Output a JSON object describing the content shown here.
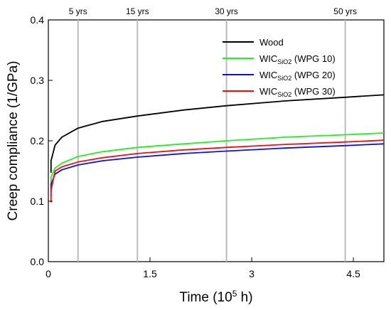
{
  "chart_data": {
    "type": "line",
    "xlabel": "Time (10",
    "xlabel_sup": "5",
    "xlabel_tail": " h)",
    "ylabel": "Creep compliance (1/GPa)",
    "xlim": [
      0,
      4.95
    ],
    "ylim": [
      0,
      0.4
    ],
    "x_ticks": [
      0,
      1.5,
      3,
      4.5
    ],
    "x_tick_labels": [
      "0",
      "1.5",
      "3",
      "4.5"
    ],
    "y_ticks": [
      0.0,
      0.1,
      0.2,
      0.3,
      0.4
    ],
    "y_tick_labels": [
      "0.0",
      "0.1",
      "0.2",
      "0.3",
      "0.4"
    ],
    "grid": false,
    "legend_position": "top-right",
    "annotations": [
      {
        "label": "5 yrs",
        "x": 0.438
      },
      {
        "label": "15 yrs",
        "x": 1.314
      },
      {
        "label": "30 yrs",
        "x": 2.628
      },
      {
        "label": "50 yrs",
        "x": 4.38
      }
    ],
    "series": [
      {
        "name": "Wood",
        "color": "#000000",
        "x": [
          0.04,
          0.1,
          0.2,
          0.438,
          0.8,
          1.314,
          2.0,
          2.628,
          3.5,
          4.38,
          4.95
        ],
        "values": [
          0.167,
          0.193,
          0.206,
          0.221,
          0.232,
          0.241,
          0.251,
          0.258,
          0.266,
          0.272,
          0.276
        ]
      },
      {
        "name_prefix": "WIC",
        "name_sub": "SiO2",
        "name_suffix": " (WPG 10)",
        "color": "#22ee22",
        "x": [
          0.04,
          0.1,
          0.2,
          0.438,
          0.8,
          1.314,
          2.0,
          2.628,
          3.5,
          4.38,
          4.95
        ],
        "values": [
          0.14,
          0.155,
          0.163,
          0.174,
          0.182,
          0.189,
          0.195,
          0.2,
          0.206,
          0.21,
          0.213
        ]
      },
      {
        "name_prefix": "WIC",
        "name_sub": "SiO2",
        "name_suffix": " (WPG 20)",
        "color": "#1010dd",
        "x": [
          0.04,
          0.1,
          0.2,
          0.438,
          0.8,
          1.314,
          2.0,
          2.628,
          3.5,
          4.38,
          4.95
        ],
        "values": [
          0.128,
          0.145,
          0.152,
          0.16,
          0.167,
          0.173,
          0.179,
          0.183,
          0.188,
          0.192,
          0.195
        ]
      },
      {
        "name_prefix": "WIC",
        "name_sub": "SiO2",
        "name_suffix": " (WPG 30)",
        "color": "#ee1111",
        "x": [
          0.04,
          0.1,
          0.2,
          0.438,
          0.8,
          1.314,
          2.0,
          2.628,
          3.5,
          4.38,
          4.95
        ],
        "values": [
          0.118,
          0.15,
          0.157,
          0.165,
          0.172,
          0.179,
          0.185,
          0.189,
          0.194,
          0.198,
          0.201
        ]
      }
    ]
  }
}
